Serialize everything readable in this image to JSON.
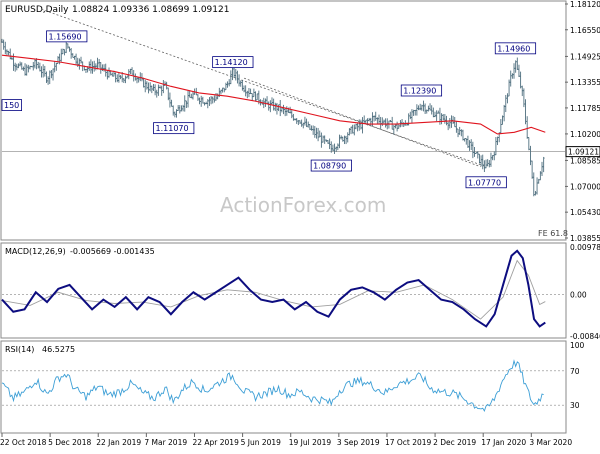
{
  "header": {
    "symbol": "EURUSD,Daily",
    "ohlc": "1.08824 1.09336 1.08699 1.09121"
  },
  "watermark": "ActionForex.com",
  "fib_label": "FE 61.8",
  "colors": {
    "candles": "#4e6e7e",
    "ma": "#e0141e",
    "macd": "#0d0d80",
    "signal": "#a0a0a0",
    "rsi": "#3d9fd6",
    "trendline": "#606060",
    "label_border": "#000080",
    "label_text": "#000080"
  },
  "chart_data": [
    {
      "type": "candlestick",
      "panel": "price",
      "y_ticks": [
        "1.18120",
        "1.16550",
        "1.14925",
        "1.13355",
        "1.11785",
        "1.10200",
        "1.08585",
        "1.07000",
        "1.05430",
        "1.03855"
      ],
      "ylim": [
        1.03855,
        1.1812
      ],
      "x_ticks": [
        "22 Oct 2018",
        "5 Dec 2018",
        "22 Jan 2019",
        "7 Mar 2019",
        "22 Apr 2019",
        "5 Jun 2019",
        "19 Jul 2019",
        "3 Sep 2019",
        "17 Oct 2019",
        "2 Dec 2019",
        "17 Jan 2020",
        "3 Mar 2020"
      ],
      "current_price": "1.09121",
      "annotations": [
        {
          "label": "1.15690",
          "x": 0.115,
          "value": 1.1569
        },
        {
          "label": "1.14120",
          "x": 0.41,
          "value": 1.1412
        },
        {
          "label": "1.11070",
          "x": 0.305,
          "value": 1.1107
        },
        {
          "label": "1.08790",
          "x": 0.585,
          "value": 1.0879
        },
        {
          "label": "1.12390",
          "x": 0.745,
          "value": 1.1239
        },
        {
          "label": "1.07770",
          "x": 0.86,
          "value": 1.0777
        },
        {
          "label": "1.14960",
          "x": 0.912,
          "value": 1.1496
        },
        {
          "label": "150",
          "x": 0.0,
          "value": 1.115
        }
      ],
      "series": [
        {
          "name": "close",
          "points": [
            [
              0,
              1.158
            ],
            [
              0.02,
              1.146
            ],
            [
              0.04,
              1.14
            ],
            [
              0.06,
              1.145
            ],
            [
              0.08,
              1.136
            ],
            [
              0.1,
              1.147
            ],
            [
              0.115,
              1.156
            ],
            [
              0.13,
              1.148
            ],
            [
              0.15,
              1.142
            ],
            [
              0.17,
              1.144
            ],
            [
              0.19,
              1.138
            ],
            [
              0.21,
              1.135
            ],
            [
              0.23,
              1.14
            ],
            [
              0.25,
              1.133
            ],
            [
              0.27,
              1.128
            ],
            [
              0.29,
              1.131
            ],
            [
              0.305,
              1.114
            ],
            [
              0.32,
              1.12
            ],
            [
              0.34,
              1.126
            ],
            [
              0.36,
              1.122
            ],
            [
              0.38,
              1.124
            ],
            [
              0.4,
              1.132
            ],
            [
              0.41,
              1.14
            ],
            [
              0.43,
              1.13
            ],
            [
              0.45,
              1.125
            ],
            [
              0.47,
              1.12
            ],
            [
              0.49,
              1.118
            ],
            [
              0.51,
              1.114
            ],
            [
              0.53,
              1.11
            ],
            [
              0.55,
              1.104
            ],
            [
              0.57,
              1.098
            ],
            [
              0.585,
              1.093
            ],
            [
              0.6,
              1.098
            ],
            [
              0.62,
              1.104
            ],
            [
              0.64,
              1.108
            ],
            [
              0.66,
              1.112
            ],
            [
              0.68,
              1.109
            ],
            [
              0.7,
              1.106
            ],
            [
              0.72,
              1.11
            ],
            [
              0.745,
              1.12
            ],
            [
              0.76,
              1.116
            ],
            [
              0.78,
              1.112
            ],
            [
              0.8,
              1.108
            ],
            [
              0.82,
              1.1
            ],
            [
              0.84,
              1.09
            ],
            [
              0.86,
              1.081
            ],
            [
              0.875,
              1.092
            ],
            [
              0.89,
              1.115
            ],
            [
              0.905,
              1.138
            ],
            [
              0.912,
              1.146
            ],
            [
              0.925,
              1.125
            ],
            [
              0.935,
              1.095
            ],
            [
              0.945,
              1.065
            ],
            [
              0.955,
              1.078
            ],
            [
              0.965,
              1.091
            ]
          ]
        },
        {
          "name": "ma",
          "points": [
            [
              0,
              1.15
            ],
            [
              0.05,
              1.148
            ],
            [
              0.1,
              1.146
            ],
            [
              0.15,
              1.143
            ],
            [
              0.2,
              1.14
            ],
            [
              0.25,
              1.136
            ],
            [
              0.3,
              1.131
            ],
            [
              0.35,
              1.127
            ],
            [
              0.4,
              1.125
            ],
            [
              0.45,
              1.122
            ],
            [
              0.5,
              1.118
            ],
            [
              0.55,
              1.114
            ],
            [
              0.6,
              1.11
            ],
            [
              0.65,
              1.108
            ],
            [
              0.7,
              1.108
            ],
            [
              0.75,
              1.109
            ],
            [
              0.8,
              1.11
            ],
            [
              0.85,
              1.108
            ],
            [
              0.88,
              1.102
            ],
            [
              0.91,
              1.103
            ],
            [
              0.94,
              1.106
            ],
            [
              0.965,
              1.103
            ]
          ]
        }
      ]
    },
    {
      "type": "line",
      "panel": "macd",
      "title": "MACD(12,26,9)",
      "values_label": "-0.005669 -0.001435",
      "y_ticks": [
        "0.00978",
        "0.00",
        "-0.008464"
      ],
      "ylim": [
        -0.008464,
        0.00978
      ],
      "series": [
        {
          "name": "MACD",
          "points": [
            [
              0,
              -0.001
            ],
            [
              0.02,
              -0.0035
            ],
            [
              0.04,
              -0.003
            ],
            [
              0.06,
              0.0005
            ],
            [
              0.08,
              -0.0015
            ],
            [
              0.1,
              0.0012
            ],
            [
              0.12,
              0.002
            ],
            [
              0.14,
              -0.0005
            ],
            [
              0.16,
              -0.003
            ],
            [
              0.18,
              -0.001
            ],
            [
              0.2,
              -0.0025
            ],
            [
              0.22,
              -0.0005
            ],
            [
              0.24,
              -0.003
            ],
            [
              0.26,
              -0.0005
            ],
            [
              0.28,
              -0.0015
            ],
            [
              0.3,
              -0.004
            ],
            [
              0.32,
              -0.0015
            ],
            [
              0.34,
              0.0005
            ],
            [
              0.36,
              -0.001
            ],
            [
              0.38,
              0.0005
            ],
            [
              0.4,
              0.002
            ],
            [
              0.42,
              0.0035
            ],
            [
              0.44,
              0.001
            ],
            [
              0.46,
              -0.001
            ],
            [
              0.48,
              -0.0015
            ],
            [
              0.5,
              -0.001
            ],
            [
              0.52,
              -0.003
            ],
            [
              0.54,
              -0.0015
            ],
            [
              0.56,
              -0.0035
            ],
            [
              0.58,
              -0.0045
            ],
            [
              0.6,
              -0.001
            ],
            [
              0.62,
              0.001
            ],
            [
              0.64,
              0.0015
            ],
            [
              0.66,
              0.0005
            ],
            [
              0.68,
              -0.001
            ],
            [
              0.7,
              0.001
            ],
            [
              0.72,
              0.0025
            ],
            [
              0.74,
              0.003
            ],
            [
              0.76,
              0.001
            ],
            [
              0.78,
              -0.001
            ],
            [
              0.8,
              -0.0015
            ],
            [
              0.82,
              -0.003
            ],
            [
              0.84,
              -0.005
            ],
            [
              0.86,
              -0.0065
            ],
            [
              0.875,
              -0.004
            ],
            [
              0.89,
              0.002
            ],
            [
              0.905,
              0.008
            ],
            [
              0.915,
              0.009
            ],
            [
              0.925,
              0.0075
            ],
            [
              0.935,
              0.002
            ],
            [
              0.945,
              -0.005
            ],
            [
              0.955,
              -0.0065
            ],
            [
              0.965,
              -0.0057
            ]
          ]
        },
        {
          "name": "Signal",
          "points": [
            [
              0,
              -0.0012
            ],
            [
              0.05,
              -0.0022
            ],
            [
              0.1,
              0.0005
            ],
            [
              0.15,
              -0.0012
            ],
            [
              0.2,
              -0.0018
            ],
            [
              0.25,
              -0.0015
            ],
            [
              0.3,
              -0.0025
            ],
            [
              0.35,
              -0.0002
            ],
            [
              0.4,
              0.001
            ],
            [
              0.45,
              0.0005
            ],
            [
              0.5,
              -0.0012
            ],
            [
              0.55,
              -0.0025
            ],
            [
              0.6,
              -0.002
            ],
            [
              0.65,
              0.0008
            ],
            [
              0.7,
              0.0005
            ],
            [
              0.75,
              0.002
            ],
            [
              0.8,
              -0.001
            ],
            [
              0.85,
              -0.005
            ],
            [
              0.89,
              -0.0005
            ],
            [
              0.915,
              0.007
            ],
            [
              0.935,
              0.004
            ],
            [
              0.955,
              -0.002
            ],
            [
              0.965,
              -0.0014
            ]
          ]
        }
      ]
    },
    {
      "type": "line",
      "panel": "rsi",
      "title": "RSI(14)",
      "values_label": "46.5275",
      "y_ticks": [
        "100",
        "70",
        "30",
        "0"
      ],
      "ylim": [
        0,
        100
      ],
      "series": [
        {
          "name": "RSI",
          "points": [
            [
              0,
              55
            ],
            [
              0.02,
              38
            ],
            [
              0.04,
              45
            ],
            [
              0.06,
              60
            ],
            [
              0.08,
              42
            ],
            [
              0.1,
              62
            ],
            [
              0.115,
              66
            ],
            [
              0.13,
              48
            ],
            [
              0.15,
              40
            ],
            [
              0.17,
              52
            ],
            [
              0.19,
              42
            ],
            [
              0.21,
              46
            ],
            [
              0.23,
              55
            ],
            [
              0.25,
              44
            ],
            [
              0.27,
              38
            ],
            [
              0.29,
              50
            ],
            [
              0.305,
              34
            ],
            [
              0.32,
              48
            ],
            [
              0.34,
              58
            ],
            [
              0.36,
              46
            ],
            [
              0.38,
              54
            ],
            [
              0.4,
              62
            ],
            [
              0.41,
              64
            ],
            [
              0.43,
              46
            ],
            [
              0.45,
              40
            ],
            [
              0.47,
              44
            ],
            [
              0.49,
              50
            ],
            [
              0.51,
              42
            ],
            [
              0.53,
              46
            ],
            [
              0.55,
              38
            ],
            [
              0.57,
              36
            ],
            [
              0.585,
              32
            ],
            [
              0.6,
              48
            ],
            [
              0.62,
              56
            ],
            [
              0.64,
              58
            ],
            [
              0.66,
              52
            ],
            [
              0.68,
              44
            ],
            [
              0.7,
              54
            ],
            [
              0.72,
              58
            ],
            [
              0.745,
              64
            ],
            [
              0.76,
              50
            ],
            [
              0.78,
              46
            ],
            [
              0.8,
              44
            ],
            [
              0.82,
              38
            ],
            [
              0.84,
              30
            ],
            [
              0.86,
              24
            ],
            [
              0.875,
              38
            ],
            [
              0.89,
              60
            ],
            [
              0.905,
              76
            ],
            [
              0.915,
              80
            ],
            [
              0.925,
              62
            ],
            [
              0.935,
              44
            ],
            [
              0.945,
              30
            ],
            [
              0.955,
              38
            ],
            [
              0.965,
              46.5
            ]
          ]
        }
      ]
    }
  ]
}
